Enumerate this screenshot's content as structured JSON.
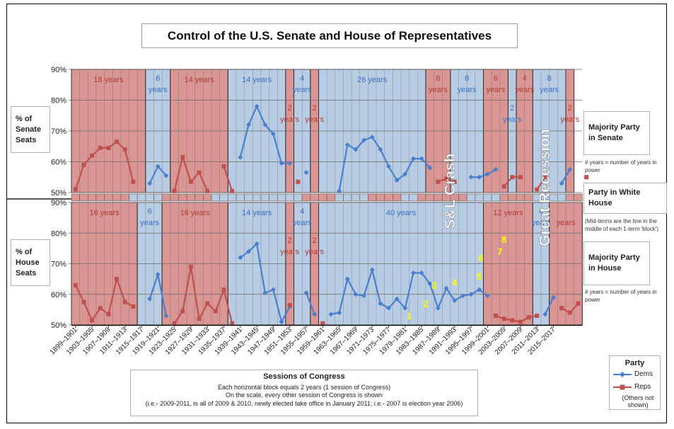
{
  "title": "Control of the U.S. Senate and House of Representatives",
  "colors": {
    "dem": "#4a7fcd",
    "rep": "#c0504d",
    "dem_fill": "#b8cce4",
    "rep_fill": "#d99694",
    "annot_yellow": "#ffff00"
  },
  "side_labels": {
    "senate_seats": "% of Senate Seats",
    "house_seats": "% of House Seats",
    "majority_senate": "Majority Party in Senate",
    "senate_note": "# years = number of years in power",
    "white_house": "Party in White House",
    "white_house_note": "(Mid-terms are the line in the middle of each 1-term 'block')",
    "majority_house": "Majority Party in House",
    "house_note": "# years = number of years in power"
  },
  "sessions_box": {
    "title": "Sessions of Congress",
    "line1": "Each horizontal block equals 2 years (1 session of Congress)",
    "line2": "On the scale, every other session of Congress is shown",
    "line3": "(i.e.- 2009-2011, is all of 2009 & 2010, newly elected take office in January 2011; i.e.- 2007 is election year 2006)"
  },
  "legend": {
    "title": "Party",
    "dems": "Dems",
    "reps": "Reps",
    "others": "(Others not shown)"
  },
  "crisis_labels": {
    "sl_crash": "S&L Crash",
    "great_recession": "Great Recession"
  },
  "chart_data": [
    {
      "type": "line",
      "title": "% of Senate Seats",
      "ylim": [
        50,
        90
      ],
      "yticks": [
        "50%",
        "60%",
        "70%",
        "80%",
        "90%"
      ],
      "series": [
        {
          "name": "Dems",
          "values": [
            null,
            null,
            null,
            null,
            null,
            null,
            null,
            null,
            null,
            53,
            58.5,
            55.5,
            null,
            null,
            null,
            null,
            null,
            null,
            null,
            null,
            61.5,
            72,
            78,
            72,
            69,
            59.5,
            59.5,
            null,
            56.5,
            null,
            null,
            null,
            50.5,
            65.5,
            64,
            67,
            68,
            64,
            58.5,
            54,
            56,
            61,
            61,
            58,
            null,
            null,
            null,
            null,
            55,
            55,
            56,
            57.5,
            null,
            null,
            null,
            null,
            null,
            null,
            null,
            53,
            57.5,
            null,
            null
          ]
        },
        {
          "name": "Reps",
          "values": [
            51,
            59,
            62,
            64.5,
            64.5,
            66.5,
            64,
            53.5,
            null,
            null,
            null,
            null,
            50.5,
            61.5,
            53.5,
            56.5,
            50.5,
            null,
            58.5,
            50.5,
            null,
            null,
            null,
            null,
            null,
            null,
            null,
            53.5,
            null,
            null,
            null,
            null,
            null,
            null,
            null,
            null,
            null,
            null,
            null,
            null,
            null,
            null,
            null,
            null,
            53.5,
            54.5,
            53.5,
            null,
            null,
            null,
            null,
            null,
            52,
            55,
            55,
            null,
            51,
            55,
            null,
            null,
            null,
            null,
            55
          ]
        }
      ],
      "blocks": [
        {
          "party": "rep",
          "years": "18",
          "unit": "years",
          "from": 0,
          "to": 9
        },
        {
          "party": "dem",
          "years": "6",
          "unit": "years",
          "from": 9,
          "to": 12
        },
        {
          "party": "rep",
          "years": "14",
          "unit": "years",
          "from": 12,
          "to": 19
        },
        {
          "party": "dem",
          "years": "14",
          "unit": "years",
          "from": 19,
          "to": 26
        },
        {
          "party": "rep",
          "years": "2",
          "unit": "years",
          "from": 26,
          "to": 27
        },
        {
          "party": "dem",
          "years": "4",
          "unit": "years",
          "from": 27,
          "to": 29
        },
        {
          "party": "rep",
          "years": "2",
          "unit": "years",
          "from": 29,
          "to": 30
        },
        {
          "party": "dem",
          "years": "26",
          "unit": "years",
          "from": 30,
          "to": 43
        },
        {
          "party": "rep",
          "years": "6",
          "unit": "years",
          "from": 43,
          "to": 46
        },
        {
          "party": "dem",
          "years": "8",
          "unit": "years",
          "from": 46,
          "to": 50
        },
        {
          "party": "rep",
          "years": "6",
          "unit": "years",
          "from": 50,
          "to": 53
        },
        {
          "party": "dem",
          "years": "2",
          "unit": "years",
          "from": 53,
          "to": 54
        },
        {
          "party": "rep",
          "years": "4",
          "unit": "years",
          "from": 54,
          "to": 56
        },
        {
          "party": "dem",
          "years": "8",
          "unit": "years",
          "from": 56,
          "to": 60
        },
        {
          "party": "rep",
          "years": "2",
          "unit": "years",
          "from": 60,
          "to": 61
        }
      ]
    },
    {
      "type": "line",
      "title": "% of House Seats",
      "ylim": [
        50,
        90
      ],
      "yticks": [
        "50%",
        "60%",
        "70%",
        "80%",
        "90%"
      ],
      "series": [
        {
          "name": "Dems",
          "values": [
            null,
            null,
            null,
            null,
            null,
            null,
            null,
            null,
            null,
            58.5,
            66.5,
            53,
            null,
            null,
            null,
            null,
            null,
            null,
            null,
            null,
            72,
            74,
            76.5,
            60.5,
            61.5,
            51,
            56,
            null,
            60.5,
            53.5,
            null,
            53.5,
            54,
            65,
            60,
            59.5,
            68,
            57,
            55.5,
            58.5,
            55.5,
            67,
            67,
            63.5,
            55.5,
            62,
            58,
            59.5,
            60,
            61.5,
            59.5,
            null,
            null,
            null,
            null,
            null,
            null,
            53.5,
            59,
            null,
            null,
            null,
            null
          ]
        },
        {
          "name": "Reps",
          "values": [
            63,
            57.5,
            51.5,
            55.5,
            53.5,
            65,
            57.5,
            56,
            null,
            null,
            null,
            null,
            50.5,
            54.5,
            69,
            52,
            57,
            54.5,
            61.5,
            50.5,
            null,
            null,
            null,
            null,
            null,
            null,
            56.5,
            null,
            null,
            null,
            50.5,
            null,
            null,
            null,
            null,
            null,
            null,
            null,
            null,
            null,
            null,
            null,
            null,
            null,
            null,
            null,
            null,
            null,
            null,
            null,
            null,
            53,
            52,
            51.5,
            51,
            52.5,
            53,
            null,
            null,
            55.5,
            54,
            57,
            null
          ]
        }
      ],
      "blocks": [
        {
          "party": "rep",
          "years": "16",
          "unit": "years",
          "from": 0,
          "to": 8
        },
        {
          "party": "dem",
          "years": "6",
          "unit": "years",
          "from": 8,
          "to": 11
        },
        {
          "party": "rep",
          "years": "16",
          "unit": "years",
          "from": 11,
          "to": 19
        },
        {
          "party": "dem",
          "years": "14",
          "unit": "years",
          "from": 19,
          "to": 26
        },
        {
          "party": "rep",
          "years": "2",
          "unit": "years",
          "from": 26,
          "to": 27
        },
        {
          "party": "dem",
          "years": "4",
          "unit": "years",
          "from": 27,
          "to": 29
        },
        {
          "party": "rep",
          "years": "2",
          "unit": "years",
          "from": 29,
          "to": 30
        },
        {
          "party": "dem",
          "years": "40",
          "unit": "years",
          "from": 30,
          "to": 50
        },
        {
          "party": "rep",
          "years": "12",
          "unit": "years",
          "from": 50,
          "to": 56
        },
        {
          "party": "dem",
          "years": "4",
          "unit": "years",
          "from": 56,
          "to": 58
        },
        {
          "party": "rep",
          "years": "",
          "unit": "years",
          "from": 58,
          "to": 62
        }
      ],
      "annotations": [
        {
          "label": "1",
          "index": 40.5,
          "y": 53
        },
        {
          "label": "2",
          "index": 42.5,
          "y": 57
        },
        {
          "label": "3",
          "index": 43.5,
          "y": 63
        },
        {
          "label": "4",
          "index": 46,
          "y": 64
        },
        {
          "label": "5",
          "index": 49,
          "y": 66
        },
        {
          "label": "6",
          "index": 49.2,
          "y": 72
        },
        {
          "label": "7",
          "index": 51.5,
          "y": 74
        },
        {
          "label": "8",
          "index": 52,
          "y": 78
        }
      ]
    }
  ],
  "white_house": [
    "rep",
    "rep",
    "rep",
    "rep",
    "rep",
    "rep",
    "rep",
    "dem",
    "dem",
    "dem",
    "dem",
    "rep",
    "rep",
    "rep",
    "rep",
    "rep",
    "rep",
    "dem",
    "dem",
    "dem",
    "dem",
    "dem",
    "dem",
    "dem",
    "dem",
    "dem",
    "dem",
    "dem",
    "rep",
    "rep",
    "rep",
    "rep",
    "dem",
    "dem",
    "dem",
    "dem",
    "rep",
    "rep",
    "rep",
    "rep",
    "dem",
    "dem",
    "rep",
    "rep",
    "rep",
    "rep",
    "rep",
    "rep",
    "dem",
    "dem",
    "dem",
    "dem",
    "rep",
    "rep",
    "rep",
    "rep",
    "dem",
    "dem",
    "dem",
    "dem",
    "rep",
    "rep"
  ],
  "x_tick_labels": [
    "1899–1901",
    "1903–1905",
    "1907–1909",
    "1911–1913",
    "1915–1917",
    "1919–1921",
    "1923–1925",
    "1927–1929",
    "1931–1933",
    "1935–1937",
    "1939–1941",
    "1943–1945",
    "1947–1949",
    "1951–1953",
    "1955–1957",
    "1959–1961",
    "1963–1965",
    "1967–1969",
    "1971–1973",
    "1975–1977",
    "1979–1981",
    "1983–1985",
    "1987–1989",
    "1991–1993",
    "1995–1997",
    "1999–2001",
    "2003–2005",
    "2007–2009",
    "2011–2013",
    "2015–2017"
  ]
}
